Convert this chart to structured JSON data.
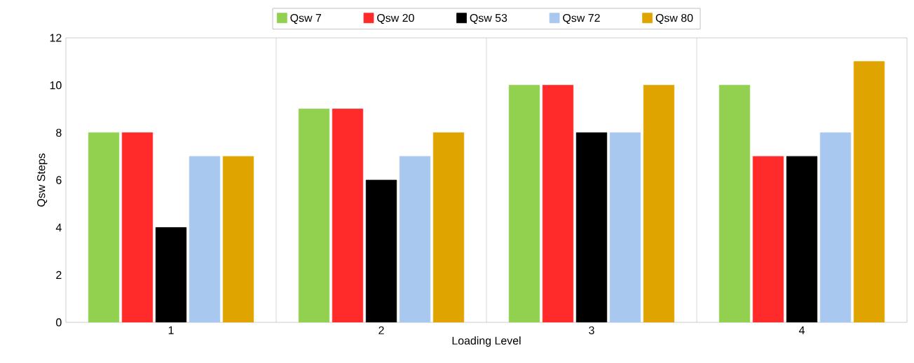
{
  "chart_data": {
    "type": "bar",
    "xlabel": "Loading Level",
    "ylabel": "Qsw Steps",
    "categories": [
      "1",
      "2",
      "3",
      "4"
    ],
    "series": [
      {
        "name": "Qsw 7",
        "color": "#92d050",
        "values": [
          8,
          9,
          10,
          10
        ]
      },
      {
        "name": "Qsw 20",
        "color": "#ff2a2a",
        "values": [
          8,
          9,
          10,
          7
        ]
      },
      {
        "name": "Qsw 53",
        "color": "#000000",
        "values": [
          4,
          6,
          8,
          7
        ]
      },
      {
        "name": "Qsw 72",
        "color": "#a9c8f0",
        "values": [
          7,
          7,
          8,
          8
        ]
      },
      {
        "name": "Qsw 80",
        "color": "#e0a400",
        "values": [
          7,
          8,
          10,
          11
        ]
      }
    ],
    "ylim": [
      0,
      12
    ],
    "yticks": [
      0,
      2,
      4,
      6,
      8,
      10,
      12
    ],
    "grid": "x",
    "legend": "top"
  }
}
